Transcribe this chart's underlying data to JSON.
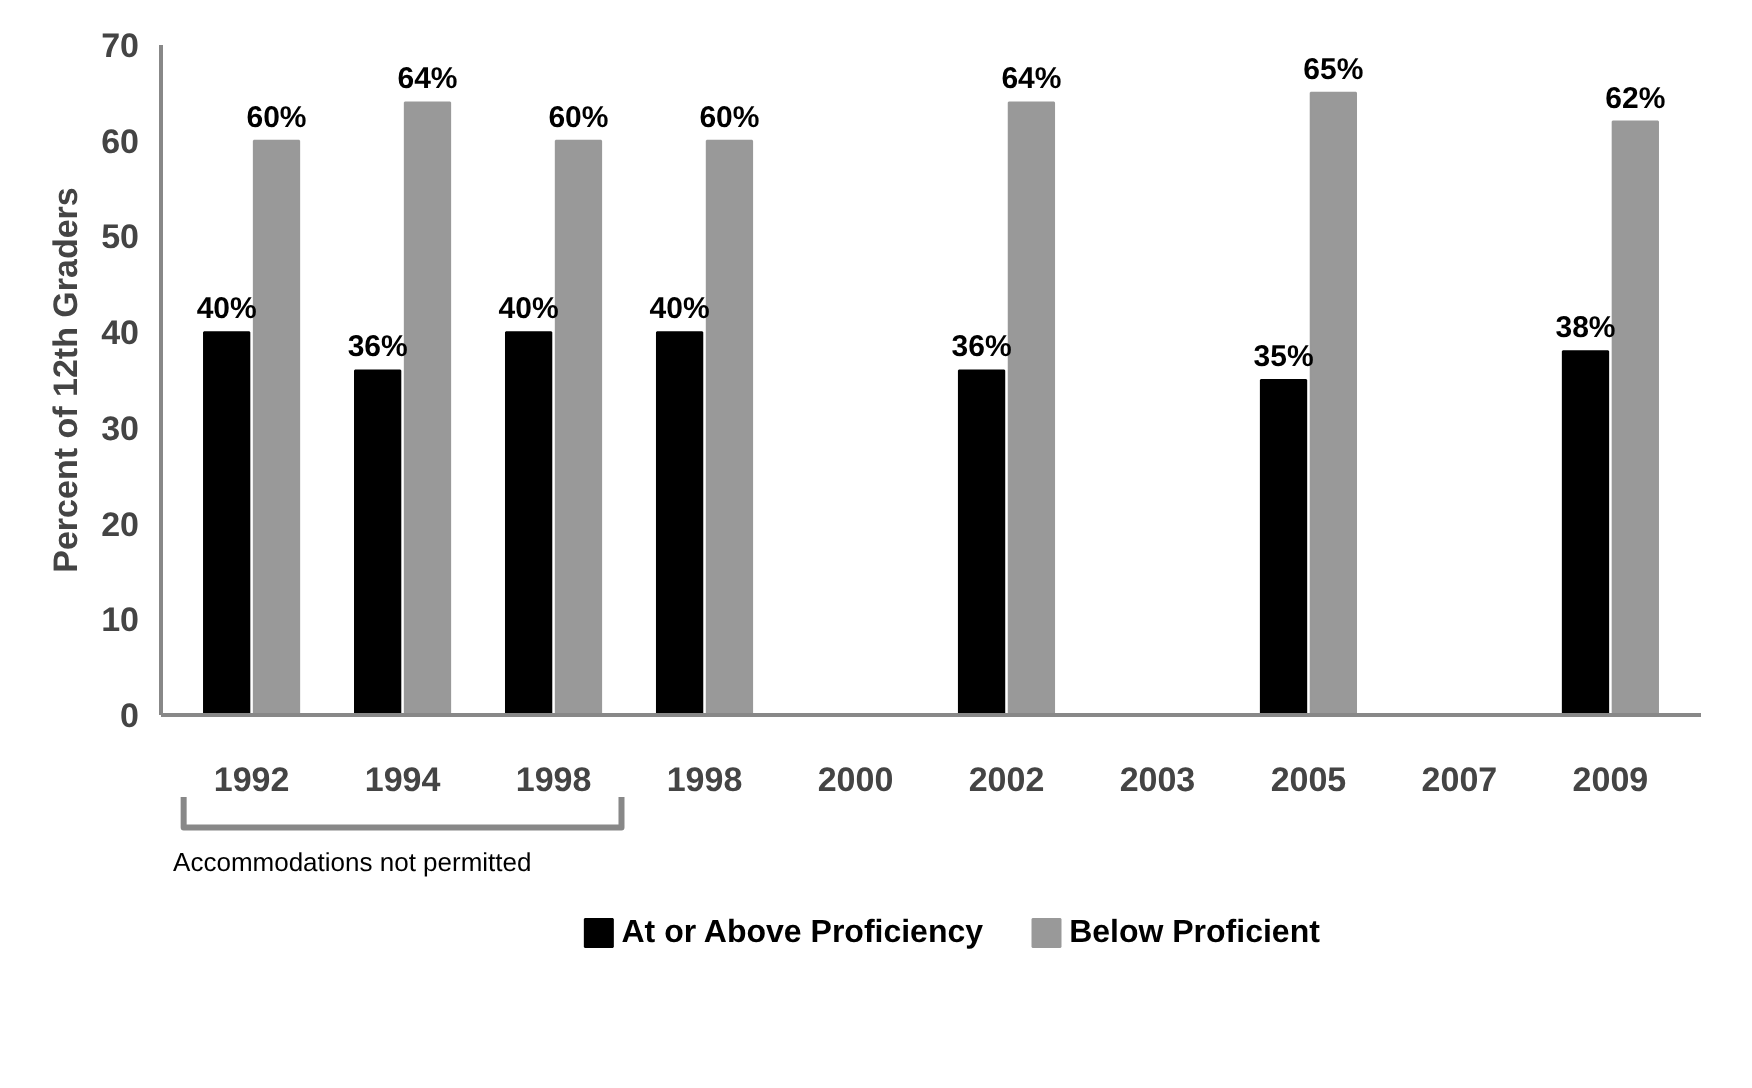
{
  "chart_data": {
    "type": "bar",
    "ylabel": "Percent of 12th Graders",
    "categories": [
      "1992",
      "1994",
      "1998",
      "1998",
      "2000",
      "2002",
      "2003",
      "2005",
      "2007",
      "2009"
    ],
    "series": [
      {
        "name": "At or Above Proficiency",
        "color": "#000000",
        "values": [
          40,
          36,
          40,
          40,
          null,
          36,
          null,
          35,
          null,
          38
        ],
        "value_labels": [
          "40%",
          "36%",
          "40%",
          "40%",
          null,
          "36%",
          null,
          "35%",
          null,
          "38%"
        ]
      },
      {
        "name": "Below Proficient",
        "color": "#999999",
        "values": [
          60,
          64,
          60,
          60,
          null,
          64,
          null,
          65,
          null,
          62
        ],
        "value_labels": [
          "60%",
          "64%",
          "60%",
          "60%",
          null,
          "64%",
          null,
          "65%",
          null,
          "62%"
        ]
      }
    ],
    "ylim": [
      0,
      70
    ],
    "yticks": [
      0,
      10,
      20,
      30,
      40,
      50,
      60,
      70
    ],
    "grid": false,
    "legend": "bottom",
    "annotations": [
      "Accommodations not permitted"
    ]
  }
}
